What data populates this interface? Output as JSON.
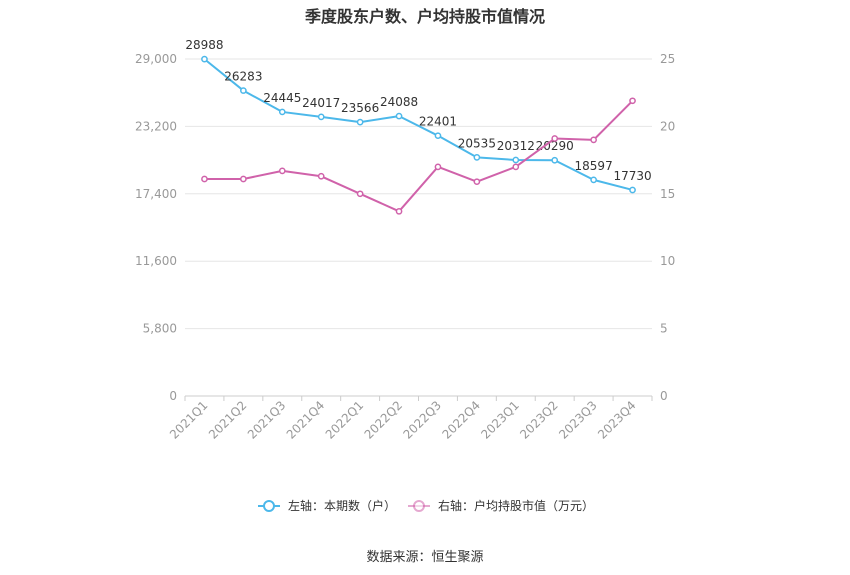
{
  "chart_data": {
    "type": "line",
    "title": "季度股东户数、户均持股市值情况",
    "categories": [
      "2021Q1",
      "2021Q2",
      "2021Q3",
      "2021Q4",
      "2022Q1",
      "2022Q2",
      "2022Q3",
      "2022Q4",
      "2023Q1",
      "2023Q2",
      "2023Q3",
      "2023Q4"
    ],
    "series": [
      {
        "name": "左轴：本期数（户）",
        "axis": "left",
        "color": "#4cb8ea",
        "values": [
          28988,
          26283,
          24445,
          24017,
          23566,
          24088,
          22401,
          20535,
          20312,
          20290,
          18597,
          17730
        ],
        "labels": [
          "28988",
          "26283",
          "24445",
          "24017",
          "23566",
          "24088",
          "22401",
          "20535",
          "20312",
          "20290",
          "18597",
          "17730"
        ]
      },
      {
        "name": "右轴：户均持股市值（万元）",
        "axis": "right",
        "color": "#d062aa",
        "values": [
          16.1,
          16.1,
          16.7,
          16.3,
          15.0,
          13.7,
          17.0,
          15.9,
          17.0,
          19.1,
          19.0,
          21.9
        ]
      }
    ],
    "y_left": {
      "min": 0,
      "max": 29000,
      "ticks": [
        "0",
        "5,800",
        "11,600",
        "17,400",
        "23,200",
        "29,000"
      ],
      "tick_values": [
        0,
        5800,
        11600,
        17400,
        23200,
        29000
      ]
    },
    "y_right": {
      "min": 0,
      "max": 25,
      "ticks": [
        "0",
        "5",
        "10",
        "15",
        "20",
        "25"
      ],
      "tick_values": [
        0,
        5,
        10,
        15,
        20,
        25
      ]
    },
    "grid": true,
    "legend": "bottom"
  },
  "source": "数据来源：恒生聚源"
}
